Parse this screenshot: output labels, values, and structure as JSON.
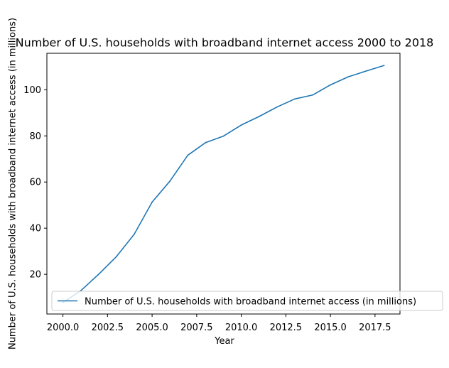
{
  "chart_data": {
    "type": "line",
    "title": "Number of U.S. households with broadband internet access 2000 to 2018",
    "xlabel": "Year",
    "ylabel": "Number of U.S. households with broadband internet access (in millions)",
    "xlim": [
      1999.1,
      2018.9
    ],
    "ylim": [
      2.8,
      115.8
    ],
    "x_ticks": [
      {
        "value": 2000.0,
        "label": "2000.0"
      },
      {
        "value": 2002.5,
        "label": "2002.5"
      },
      {
        "value": 2005.0,
        "label": "2005.0"
      },
      {
        "value": 2007.5,
        "label": "2007.5"
      },
      {
        "value": 2010.0,
        "label": "2010.0"
      },
      {
        "value": 2012.5,
        "label": "2012.5"
      },
      {
        "value": 2015.0,
        "label": "2015.0"
      },
      {
        "value": 2017.5,
        "label": "2017.5"
      }
    ],
    "y_ticks": [
      {
        "value": 20,
        "label": "20"
      },
      {
        "value": 40,
        "label": "40"
      },
      {
        "value": 60,
        "label": "60"
      },
      {
        "value": 80,
        "label": "80"
      },
      {
        "value": 100,
        "label": "100"
      }
    ],
    "grid": false,
    "legend": "lower left",
    "series": [
      {
        "name": "Number of U.S. households with broadband internet access (in millions)",
        "color": "#1f77b4",
        "x": [
          2000,
          2001,
          2002,
          2003,
          2004,
          2005,
          2006,
          2007,
          2008,
          2009,
          2010,
          2011,
          2012,
          2013,
          2014,
          2015,
          2016,
          2017,
          2018
        ],
        "y": [
          7.8,
          12.9,
          20.0,
          27.7,
          37.4,
          51.3,
          60.4,
          71.6,
          77.1,
          79.9,
          84.7,
          88.4,
          92.5,
          96.0,
          97.7,
          102.1,
          105.6,
          108.1,
          110.5
        ]
      }
    ]
  }
}
